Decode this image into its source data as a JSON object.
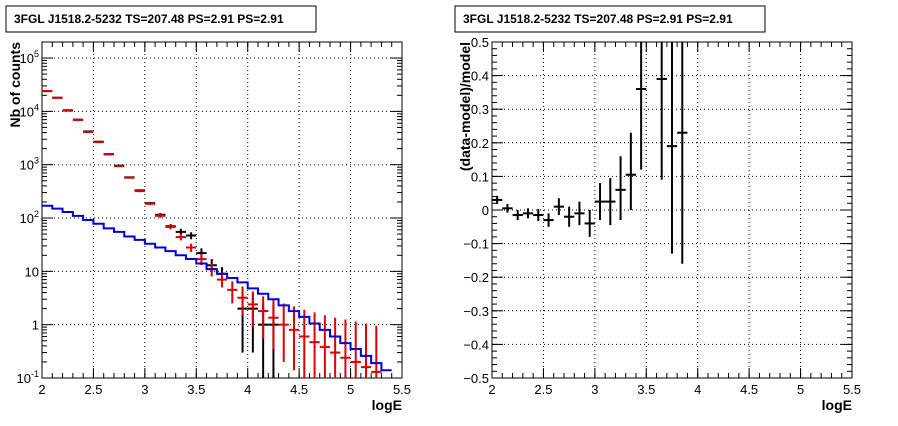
{
  "chart_data": [
    {
      "type": "scatter",
      "title": "3FGL J1518.2-5232 TS=207.48 PS=2.91 PS=2.91",
      "xlabel": "logE",
      "ylabel": "Nb of counts",
      "xlim": [
        2,
        5.5
      ],
      "ylim": [
        0.1,
        200000
      ],
      "yscale": "log",
      "grid": true,
      "x_ticks": [
        "2",
        "2.5",
        "3",
        "3.5",
        "4",
        "4.5",
        "5",
        "5.5"
      ],
      "y_ticks": [
        {
          "value": 0.1,
          "base": "10",
          "exp": "-1"
        },
        {
          "value": 1,
          "base": "1",
          "exp": ""
        },
        {
          "value": 10,
          "base": "10",
          "exp": ""
        },
        {
          "value": 100,
          "base": "10",
          "exp": "2"
        },
        {
          "value": 1000,
          "base": "10",
          "exp": "3"
        },
        {
          "value": 10000,
          "base": "10",
          "exp": "4"
        },
        {
          "value": 100000,
          "base": "10",
          "exp": "5"
        }
      ],
      "series": [
        {
          "color": "#000000",
          "kind": "data-points",
          "points": [
            {
              "x": 2.05,
              "y": 24000,
              "lo": 23800,
              "hi": 24200
            },
            {
              "x": 2.15,
              "y": 18000,
              "lo": 17800,
              "hi": 18200
            },
            {
              "x": 2.25,
              "y": 10500,
              "lo": 10300,
              "hi": 10700
            },
            {
              "x": 2.35,
              "y": 7000,
              "lo": 6850,
              "hi": 7150
            },
            {
              "x": 2.45,
              "y": 4200,
              "lo": 4100,
              "hi": 4300
            },
            {
              "x": 2.55,
              "y": 2700,
              "lo": 2640,
              "hi": 2760
            },
            {
              "x": 2.65,
              "y": 1580,
              "lo": 1540,
              "hi": 1620
            },
            {
              "x": 2.75,
              "y": 960,
              "lo": 930,
              "hi": 990
            },
            {
              "x": 2.85,
              "y": 580,
              "lo": 560,
              "hi": 600
            },
            {
              "x": 2.95,
              "y": 330,
              "lo": 315,
              "hi": 345
            },
            {
              "x": 3.05,
              "y": 190,
              "lo": 180,
              "hi": 200
            },
            {
              "x": 3.15,
              "y": 115,
              "lo": 106,
              "hi": 124
            },
            {
              "x": 3.25,
              "y": 70,
              "lo": 63,
              "hi": 77
            },
            {
              "x": 3.35,
              "y": 55,
              "lo": 48,
              "hi": 63
            },
            {
              "x": 3.45,
              "y": 47,
              "lo": 40,
              "hi": 54
            },
            {
              "x": 3.55,
              "y": 22,
              "lo": 18,
              "hi": 27
            },
            {
              "x": 3.65,
              "y": 13,
              "lo": 10,
              "hi": 17
            },
            {
              "x": 3.75,
              "y": 9,
              "lo": 6,
              "hi": 12
            },
            {
              "x": 3.95,
              "y": 2,
              "lo": 0.3,
              "hi": 4
            },
            {
              "x": 4.05,
              "y": 2,
              "lo": 0.3,
              "hi": 4
            },
            {
              "x": 4.15,
              "y": 1,
              "lo": 0.1,
              "hi": 2.5
            },
            {
              "x": 4.25,
              "y": 1,
              "lo": 0.1,
              "hi": 2.5
            }
          ]
        },
        {
          "color": "#e00000",
          "kind": "model-points",
          "points": [
            {
              "x": 2.05,
              "y": 24000,
              "lo": 23400,
              "hi": 24600
            },
            {
              "x": 2.15,
              "y": 18000,
              "lo": 17500,
              "hi": 18500
            },
            {
              "x": 2.25,
              "y": 10300,
              "lo": 10000,
              "hi": 10600
            },
            {
              "x": 2.35,
              "y": 6900,
              "lo": 6700,
              "hi": 7100
            },
            {
              "x": 2.45,
              "y": 4100,
              "lo": 4000,
              "hi": 4200
            },
            {
              "x": 2.55,
              "y": 2650,
              "lo": 2580,
              "hi": 2720
            },
            {
              "x": 2.65,
              "y": 1560,
              "lo": 1520,
              "hi": 1600
            },
            {
              "x": 2.75,
              "y": 940,
              "lo": 910,
              "hi": 970
            },
            {
              "x": 2.85,
              "y": 570,
              "lo": 550,
              "hi": 590
            },
            {
              "x": 2.95,
              "y": 320,
              "lo": 305,
              "hi": 335
            },
            {
              "x": 3.05,
              "y": 185,
              "lo": 175,
              "hi": 195
            },
            {
              "x": 3.15,
              "y": 110,
              "lo": 101,
              "hi": 119
            },
            {
              "x": 3.25,
              "y": 68,
              "lo": 61,
              "hi": 75
            },
            {
              "x": 3.35,
              "y": 44,
              "lo": 38,
              "hi": 50
            },
            {
              "x": 3.45,
              "y": 28,
              "lo": 23,
              "hi": 33
            },
            {
              "x": 3.55,
              "y": 17,
              "lo": 13,
              "hi": 21
            },
            {
              "x": 3.65,
              "y": 11,
              "lo": 8,
              "hi": 14
            },
            {
              "x": 3.75,
              "y": 7,
              "lo": 5,
              "hi": 9.6
            },
            {
              "x": 3.85,
              "y": 4.5,
              "lo": 2.5,
              "hi": 6.5
            },
            {
              "x": 3.95,
              "y": 3.2,
              "lo": 1.5,
              "hi": 5.2
            },
            {
              "x": 4.05,
              "y": 2.4,
              "lo": 0.9,
              "hi": 4.2
            },
            {
              "x": 4.15,
              "y": 1.8,
              "lo": 0.55,
              "hi": 3.4
            },
            {
              "x": 4.25,
              "y": 1.35,
              "lo": 0.35,
              "hi": 2.9
            },
            {
              "x": 4.35,
              "y": 1.0,
              "lo": 0.2,
              "hi": 2.5
            },
            {
              "x": 4.45,
              "y": 0.8,
              "lo": 0.14,
              "hi": 2.2
            },
            {
              "x": 4.55,
              "y": 0.6,
              "lo": 0.1,
              "hi": 1.9
            },
            {
              "x": 4.65,
              "y": 0.47,
              "lo": 0.1,
              "hi": 1.7
            },
            {
              "x": 4.75,
              "y": 0.38,
              "lo": 0.1,
              "hi": 1.5
            },
            {
              "x": 4.85,
              "y": 0.3,
              "lo": 0.1,
              "hi": 1.35
            },
            {
              "x": 4.95,
              "y": 0.24,
              "lo": 0.1,
              "hi": 1.25
            },
            {
              "x": 5.05,
              "y": 0.2,
              "lo": 0.1,
              "hi": 1.15
            },
            {
              "x": 5.15,
              "y": 0.16,
              "lo": 0.1,
              "hi": 1.05
            },
            {
              "x": 5.25,
              "y": 0.13,
              "lo": 0.1,
              "hi": 0.95
            }
          ]
        },
        {
          "color": "#0000dd",
          "kind": "step-line",
          "edges": [
            2.0,
            2.1,
            2.2,
            2.3,
            2.4,
            2.5,
            2.6,
            2.7,
            2.8,
            2.9,
            3.0,
            3.1,
            3.2,
            3.3,
            3.4,
            3.5,
            3.6,
            3.7,
            3.8,
            3.9,
            4.0,
            4.1,
            4.2,
            4.3,
            4.4,
            4.5,
            4.6,
            4.7,
            4.8,
            4.9,
            5.0,
            5.1,
            5.2,
            5.3,
            5.4
          ],
          "values": [
            170,
            150,
            130,
            110,
            92,
            78,
            64,
            55,
            45,
            39,
            33,
            28,
            24,
            20,
            17,
            14,
            11,
            9,
            7.5,
            6.2,
            4.8,
            3.8,
            3.0,
            2.3,
            1.8,
            1.4,
            1.05,
            0.8,
            0.6,
            0.45,
            0.35,
            0.26,
            0.19,
            0.14
          ]
        }
      ]
    },
    {
      "type": "scatter",
      "title": "3FGL J1518.2-5232 TS=207.48 PS=2.91 PS=2.91",
      "xlabel": "logE",
      "ylabel": "(data-model)/model",
      "xlim": [
        2,
        5.5
      ],
      "ylim": [
        -0.5,
        0.5
      ],
      "grid": true,
      "x_ticks": [
        "2",
        "2.5",
        "3",
        "3.5",
        "4",
        "4.5",
        "5",
        "5.5"
      ],
      "y_ticks": [
        "−0.5",
        "−0.4",
        "−0.3",
        "−0.2",
        "−0.1",
        "0",
        "0.1",
        "0.2",
        "0.3",
        "0.4",
        "0.5"
      ],
      "series": [
        {
          "color": "#000000",
          "kind": "residuals",
          "points": [
            {
              "x": 2.05,
              "y": 0.03,
              "lo": 0.018,
              "hi": 0.042
            },
            {
              "x": 2.15,
              "y": 0.005,
              "lo": -0.008,
              "hi": 0.018
            },
            {
              "x": 2.25,
              "y": -0.015,
              "lo": -0.03,
              "hi": 0.0
            },
            {
              "x": 2.35,
              "y": -0.01,
              "lo": -0.025,
              "hi": 0.005
            },
            {
              "x": 2.45,
              "y": -0.015,
              "lo": -0.033,
              "hi": 0.003
            },
            {
              "x": 2.55,
              "y": -0.03,
              "lo": -0.05,
              "hi": -0.01
            },
            {
              "x": 2.65,
              "y": 0.01,
              "lo": -0.015,
              "hi": 0.035
            },
            {
              "x": 2.75,
              "y": -0.02,
              "lo": -0.05,
              "hi": 0.01
            },
            {
              "x": 2.85,
              "y": -0.01,
              "lo": -0.045,
              "hi": 0.025
            },
            {
              "x": 2.95,
              "y": -0.04,
              "lo": -0.08,
              "hi": 0.0
            },
            {
              "x": 3.05,
              "y": 0.025,
              "lo": -0.03,
              "hi": 0.08
            },
            {
              "x": 3.15,
              "y": 0.025,
              "lo": -0.045,
              "hi": 0.095
            },
            {
              "x": 3.25,
              "y": 0.06,
              "lo": -0.03,
              "hi": 0.16
            },
            {
              "x": 3.35,
              "y": 0.105,
              "lo": 0.0,
              "hi": 0.23
            },
            {
              "x": 3.45,
              "y": 0.36,
              "lo": 0.12,
              "hi": 0.5
            },
            {
              "x": 3.65,
              "y": 0.39,
              "lo": 0.09,
              "hi": 0.5
            },
            {
              "x": 3.75,
              "y": 0.19,
              "lo": -0.13,
              "hi": 0.5
            },
            {
              "x": 3.85,
              "y": 0.23,
              "lo": -0.16,
              "hi": 0.5
            }
          ]
        }
      ]
    }
  ]
}
